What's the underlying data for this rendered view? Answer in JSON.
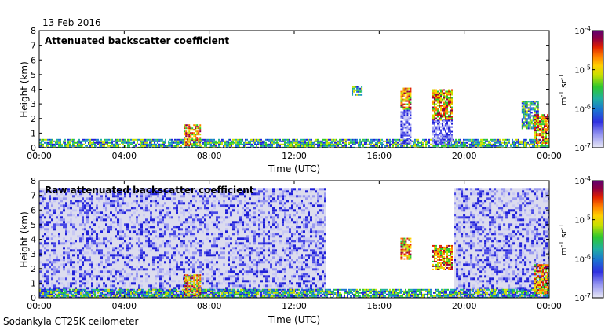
{
  "header": {
    "date": "13 Feb 2016"
  },
  "footer": {
    "instrument": "Sodankyla CT25K ceilometer"
  },
  "chart_data": [
    {
      "type": "heatmap",
      "title": "Attenuated backscatter coefficient",
      "xlabel": "Time (UTC)",
      "ylabel": "Height (km)",
      "x_ticks": [
        "00:00",
        "04:00",
        "08:00",
        "12:00",
        "16:00",
        "20:00",
        "00:00"
      ],
      "y_ticks": [
        "0",
        "1",
        "2",
        "3",
        "4",
        "5",
        "6",
        "7",
        "8"
      ],
      "xlim_hours": [
        0,
        24
      ],
      "ylim_km": [
        0,
        8
      ],
      "colorbar": {
        "scale": "log",
        "range": [
          1e-07,
          0.0001
        ],
        "tick_labels": [
          "10-7",
          "10-6",
          "10-5",
          "10-4"
        ],
        "unit": "m-1 sr-1"
      },
      "features": [
        {
          "kind": "surface_layer",
          "t0": 0,
          "t1": 24,
          "h0": 0,
          "h1": 0.6,
          "level": 2
        },
        {
          "kind": "cloud",
          "t0": 6.8,
          "t1": 7.6,
          "h0": 0.1,
          "h1": 1.6,
          "level": 3
        },
        {
          "kind": "cloud",
          "t0": 17.0,
          "t1": 17.5,
          "h0": 2.6,
          "h1": 4.1,
          "level": 3
        },
        {
          "kind": "precip",
          "t0": 17.0,
          "t1": 17.5,
          "h0": 0.3,
          "h1": 2.6,
          "level": 1
        },
        {
          "kind": "cloud",
          "t0": 18.5,
          "t1": 19.4,
          "h0": 1.9,
          "h1": 4.0,
          "level": 3
        },
        {
          "kind": "precip",
          "t0": 18.5,
          "t1": 19.4,
          "h0": 0.2,
          "h1": 1.9,
          "level": 1
        },
        {
          "kind": "cloud",
          "t0": 22.7,
          "t1": 23.5,
          "h0": 1.3,
          "h1": 3.2,
          "level": 2
        },
        {
          "kind": "cloud",
          "t0": 23.3,
          "t1": 24.0,
          "h0": 0.3,
          "h1": 2.3,
          "level": 3
        },
        {
          "kind": "cloud",
          "t0": 14.7,
          "t1": 15.2,
          "h0": 3.6,
          "h1": 4.2,
          "level": 2
        }
      ]
    },
    {
      "type": "heatmap",
      "title": "Raw attenuated backscatter coefficient",
      "xlabel": "Time (UTC)",
      "ylabel": "Height (km)",
      "x_ticks": [
        "00:00",
        "04:00",
        "08:00",
        "12:00",
        "16:00",
        "20:00",
        "00:00"
      ],
      "y_ticks": [
        "0",
        "1",
        "2",
        "3",
        "4",
        "5",
        "6",
        "7",
        "8"
      ],
      "xlim_hours": [
        0,
        24
      ],
      "ylim_km": [
        0,
        8
      ],
      "colorbar": {
        "scale": "log",
        "range": [
          1e-07,
          0.0001
        ],
        "tick_labels": [
          "10-7",
          "10-6",
          "10-5",
          "10-4"
        ],
        "unit": "m-1 sr-1"
      },
      "features": [
        {
          "kind": "noise_field",
          "t0": 0,
          "t1": 13.5,
          "h0": 0,
          "h1": 7.5,
          "level": 1
        },
        {
          "kind": "noise_field",
          "t0": 19.5,
          "t1": 24,
          "h0": 0,
          "h1": 7.5,
          "level": 1
        },
        {
          "kind": "surface_layer",
          "t0": 0,
          "t1": 24,
          "h0": 0,
          "h1": 0.6,
          "level": 2
        },
        {
          "kind": "cloud",
          "t0": 6.8,
          "t1": 7.6,
          "h0": 0.1,
          "h1": 1.6,
          "level": 3
        },
        {
          "kind": "cloud",
          "t0": 17.0,
          "t1": 17.5,
          "h0": 2.6,
          "h1": 4.1,
          "level": 3
        },
        {
          "kind": "cloud",
          "t0": 18.5,
          "t1": 19.4,
          "h0": 1.9,
          "h1": 3.6,
          "level": 3
        },
        {
          "kind": "cloud",
          "t0": 23.3,
          "t1": 24.0,
          "h0": 0.3,
          "h1": 2.3,
          "level": 3
        }
      ]
    }
  ]
}
